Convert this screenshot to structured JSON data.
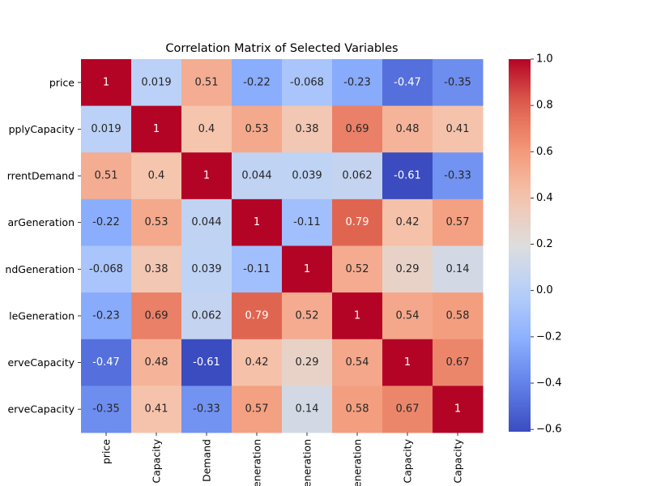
{
  "chart_data": {
    "type": "heatmap",
    "title": "Correlation Matrix of Selected Variables",
    "row_labels": [
      "price",
      "pplyCapacity",
      "rrentDemand",
      "arGeneration",
      "ndGeneration",
      "leGeneration",
      "erveCapacity",
      "erveCapacity"
    ],
    "column_labels": [
      "price",
      "Capacity",
      "Demand",
      "eneration",
      "eneration",
      "eneration",
      "Capacity",
      "Capacity"
    ],
    "values": [
      [
        1,
        0.019,
        0.51,
        -0.22,
        -0.068,
        -0.23,
        -0.47,
        -0.35
      ],
      [
        0.019,
        1,
        0.4,
        0.53,
        0.38,
        0.69,
        0.48,
        0.41
      ],
      [
        0.51,
        0.4,
        1,
        0.044,
        0.039,
        0.062,
        -0.61,
        -0.33
      ],
      [
        -0.22,
        0.53,
        0.044,
        1,
        -0.11,
        0.79,
        0.42,
        0.57
      ],
      [
        -0.068,
        0.38,
        0.039,
        -0.11,
        1,
        0.52,
        0.29,
        0.14
      ],
      [
        -0.23,
        0.69,
        0.062,
        0.79,
        0.52,
        1,
        0.54,
        0.58
      ],
      [
        -0.47,
        0.48,
        -0.61,
        0.42,
        0.29,
        0.54,
        1,
        0.67
      ],
      [
        -0.35,
        0.41,
        -0.33,
        0.57,
        0.14,
        0.58,
        0.67,
        1
      ]
    ],
    "cell_labels": [
      [
        "1",
        "0.019",
        "0.51",
        "-0.22",
        "-0.068",
        "-0.23",
        "-0.47",
        "-0.35"
      ],
      [
        "0.019",
        "1",
        "0.4",
        "0.53",
        "0.38",
        "0.69",
        "0.48",
        "0.41"
      ],
      [
        "0.51",
        "0.4",
        "1",
        "0.044",
        "0.039",
        "0.062",
        "-0.61",
        "-0.33"
      ],
      [
        "-0.22",
        "0.53",
        "0.044",
        "1",
        "-0.11",
        "0.79",
        "0.42",
        "0.57"
      ],
      [
        "-0.068",
        "0.38",
        "0.039",
        "-0.11",
        "1",
        "0.52",
        "0.29",
        "0.14"
      ],
      [
        "-0.23",
        "0.69",
        "0.062",
        "0.79",
        "0.52",
        "1",
        "0.54",
        "0.58"
      ],
      [
        "-0.47",
        "0.48",
        "-0.61",
        "0.42",
        "0.29",
        "0.54",
        "1",
        "0.67"
      ],
      [
        "-0.35",
        "0.41",
        "-0.33",
        "0.57",
        "0.14",
        "0.58",
        "0.67",
        "1"
      ]
    ],
    "colormap": "coolwarm",
    "color_range": [
      -0.61,
      1
    ],
    "colorbar": {
      "ticks": [
        1.0,
        0.8,
        0.6,
        0.4,
        0.2,
        0.0,
        -0.2,
        -0.4,
        -0.6
      ],
      "tick_labels": [
        "1.0",
        "0.8",
        "0.6",
        "0.4",
        "0.2",
        "0.0",
        "−0.2",
        "−0.4",
        "−0.6"
      ]
    }
  }
}
